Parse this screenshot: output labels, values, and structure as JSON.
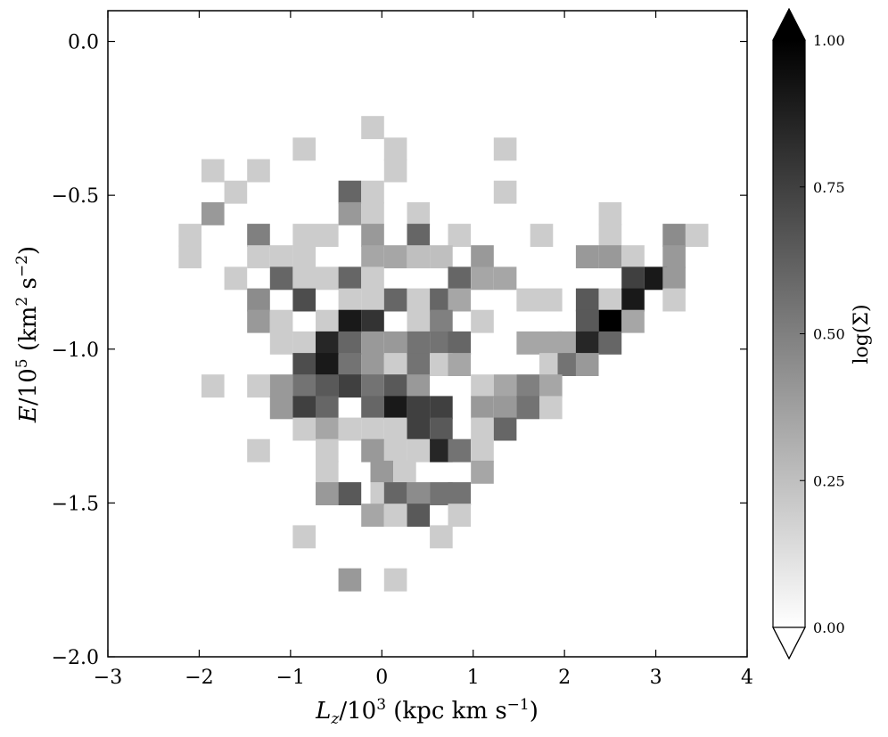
{
  "chart_data": {
    "type": "heatmap",
    "xlabel": "L_z/10^3 (kpc km s^-1)",
    "ylabel": "E/10^5 (km^2 s^-2)",
    "xlim": [
      -3,
      4
    ],
    "ylim": [
      -2.0,
      0.1
    ],
    "x_ticks": [
      "−3",
      "−2",
      "−1",
      "0",
      "1",
      "2",
      "3",
      "4"
    ],
    "y_ticks": [
      "0.0",
      "−0.5",
      "−1.0",
      "−1.5",
      "−2.0"
    ],
    "colorbar": {
      "label": "log(Σ)",
      "range": [
        0.0,
        1.0
      ],
      "ticks": [
        "0.00",
        "0.25",
        "0.50",
        "0.75",
        "1.00"
      ],
      "extend": "both",
      "colormap": "gray_r"
    },
    "bin_size": {
      "x": 0.25,
      "y": 0.075
    },
    "bins": [
      {
        "x": -0.1,
        "y": -0.28,
        "v": 0.2
      },
      {
        "x": 0.15,
        "y": -0.35,
        "v": 0.2
      },
      {
        "x": -0.85,
        "y": -0.35,
        "v": 0.2
      },
      {
        "x": 1.35,
        "y": -0.35,
        "v": 0.2
      },
      {
        "x": 0.15,
        "y": -0.42,
        "v": 0.2
      },
      {
        "x": -1.85,
        "y": -0.42,
        "v": 0.2
      },
      {
        "x": -1.35,
        "y": -0.42,
        "v": 0.2
      },
      {
        "x": -1.6,
        "y": -0.49,
        "v": 0.2
      },
      {
        "x": -0.35,
        "y": -0.49,
        "v": 0.6
      },
      {
        "x": -0.1,
        "y": -0.49,
        "v": 0.2
      },
      {
        "x": 1.35,
        "y": -0.49,
        "v": 0.2
      },
      {
        "x": -1.85,
        "y": -0.56,
        "v": 0.4
      },
      {
        "x": -0.35,
        "y": -0.56,
        "v": 0.4
      },
      {
        "x": -0.1,
        "y": -0.56,
        "v": 0.2
      },
      {
        "x": 0.4,
        "y": -0.56,
        "v": 0.2
      },
      {
        "x": 2.5,
        "y": -0.56,
        "v": 0.2
      },
      {
        "x": -2.1,
        "y": -0.63,
        "v": 0.2
      },
      {
        "x": -1.35,
        "y": -0.63,
        "v": 0.5
      },
      {
        "x": -0.85,
        "y": -0.63,
        "v": 0.2
      },
      {
        "x": -0.6,
        "y": -0.63,
        "v": 0.2
      },
      {
        "x": -0.1,
        "y": -0.63,
        "v": 0.4
      },
      {
        "x": 0.4,
        "y": -0.63,
        "v": 0.6
      },
      {
        "x": 0.85,
        "y": -0.63,
        "v": 0.2
      },
      {
        "x": 1.75,
        "y": -0.63,
        "v": 0.2
      },
      {
        "x": 2.5,
        "y": -0.63,
        "v": 0.2
      },
      {
        "x": 3.2,
        "y": -0.63,
        "v": 0.45
      },
      {
        "x": 3.45,
        "y": -0.63,
        "v": 0.2
      },
      {
        "x": -2.1,
        "y": -0.7,
        "v": 0.2
      },
      {
        "x": -1.35,
        "y": -0.7,
        "v": 0.2
      },
      {
        "x": -1.1,
        "y": -0.7,
        "v": 0.2
      },
      {
        "x": -0.85,
        "y": -0.7,
        "v": 0.2
      },
      {
        "x": -0.1,
        "y": -0.7,
        "v": 0.35
      },
      {
        "x": 0.15,
        "y": -0.7,
        "v": 0.35
      },
      {
        "x": 0.4,
        "y": -0.7,
        "v": 0.25
      },
      {
        "x": 0.65,
        "y": -0.7,
        "v": 0.25
      },
      {
        "x": 1.1,
        "y": -0.7,
        "v": 0.4
      },
      {
        "x": 2.25,
        "y": -0.7,
        "v": 0.4
      },
      {
        "x": 2.5,
        "y": -0.7,
        "v": 0.4
      },
      {
        "x": 2.75,
        "y": -0.7,
        "v": 0.2
      },
      {
        "x": 3.2,
        "y": -0.7,
        "v": 0.4
      },
      {
        "x": -1.6,
        "y": -0.77,
        "v": 0.2
      },
      {
        "x": -1.1,
        "y": -0.77,
        "v": 0.6
      },
      {
        "x": -0.85,
        "y": -0.77,
        "v": 0.2
      },
      {
        "x": -0.6,
        "y": -0.77,
        "v": 0.2
      },
      {
        "x": -0.35,
        "y": -0.77,
        "v": 0.6
      },
      {
        "x": -0.1,
        "y": -0.77,
        "v": 0.2
      },
      {
        "x": 0.85,
        "y": -0.77,
        "v": 0.6
      },
      {
        "x": 1.1,
        "y": -0.77,
        "v": 0.35
      },
      {
        "x": 1.35,
        "y": -0.77,
        "v": 0.35
      },
      {
        "x": 2.75,
        "y": -0.77,
        "v": 0.75
      },
      {
        "x": 3.0,
        "y": -0.77,
        "v": 0.9
      },
      {
        "x": 3.2,
        "y": -0.77,
        "v": 0.4
      },
      {
        "x": -1.35,
        "y": -0.84,
        "v": 0.45
      },
      {
        "x": -0.85,
        "y": -0.84,
        "v": 0.7
      },
      {
        "x": -0.35,
        "y": -0.84,
        "v": 0.2
      },
      {
        "x": -0.1,
        "y": -0.84,
        "v": 0.2
      },
      {
        "x": 0.15,
        "y": -0.84,
        "v": 0.6
      },
      {
        "x": 0.4,
        "y": -0.84,
        "v": 0.2
      },
      {
        "x": 0.65,
        "y": -0.84,
        "v": 0.6
      },
      {
        "x": 0.85,
        "y": -0.84,
        "v": 0.35
      },
      {
        "x": 1.6,
        "y": -0.84,
        "v": 0.2
      },
      {
        "x": 1.85,
        "y": -0.84,
        "v": 0.2
      },
      {
        "x": 2.25,
        "y": -0.84,
        "v": 0.65
      },
      {
        "x": 2.5,
        "y": -0.84,
        "v": 0.2
      },
      {
        "x": 2.75,
        "y": -0.84,
        "v": 0.9
      },
      {
        "x": 3.2,
        "y": -0.84,
        "v": 0.2
      },
      {
        "x": -1.35,
        "y": -0.91,
        "v": 0.4
      },
      {
        "x": -1.1,
        "y": -0.91,
        "v": 0.2
      },
      {
        "x": -0.6,
        "y": -0.91,
        "v": 0.2
      },
      {
        "x": -0.35,
        "y": -0.91,
        "v": 0.9
      },
      {
        "x": -0.1,
        "y": -0.91,
        "v": 0.8
      },
      {
        "x": 0.4,
        "y": -0.91,
        "v": 0.2
      },
      {
        "x": 0.65,
        "y": -0.91,
        "v": 0.5
      },
      {
        "x": 1.1,
        "y": -0.91,
        "v": 0.2
      },
      {
        "x": 2.25,
        "y": -0.91,
        "v": 0.65
      },
      {
        "x": 2.5,
        "y": -0.91,
        "v": 1.0
      },
      {
        "x": 2.75,
        "y": -0.91,
        "v": 0.35
      },
      {
        "x": -1.1,
        "y": -0.98,
        "v": 0.2
      },
      {
        "x": -0.85,
        "y": -0.98,
        "v": 0.2
      },
      {
        "x": -0.6,
        "y": -0.98,
        "v": 0.85
      },
      {
        "x": -0.35,
        "y": -0.98,
        "v": 0.6
      },
      {
        "x": -0.1,
        "y": -0.98,
        "v": 0.4
      },
      {
        "x": 0.15,
        "y": -0.98,
        "v": 0.4
      },
      {
        "x": 0.4,
        "y": -0.98,
        "v": 0.55
      },
      {
        "x": 0.65,
        "y": -0.98,
        "v": 0.55
      },
      {
        "x": 0.85,
        "y": -0.98,
        "v": 0.6
      },
      {
        "x": 1.6,
        "y": -0.98,
        "v": 0.35
      },
      {
        "x": 1.85,
        "y": -0.98,
        "v": 0.35
      },
      {
        "x": 2.05,
        "y": -0.98,
        "v": 0.35
      },
      {
        "x": 2.25,
        "y": -0.98,
        "v": 0.85
      },
      {
        "x": 2.5,
        "y": -0.98,
        "v": 0.6
      },
      {
        "x": -0.85,
        "y": -1.05,
        "v": 0.7
      },
      {
        "x": -0.6,
        "y": -1.05,
        "v": 0.9
      },
      {
        "x": -0.35,
        "y": -1.05,
        "v": 0.55
      },
      {
        "x": -0.1,
        "y": -1.05,
        "v": 0.4
      },
      {
        "x": 0.15,
        "y": -1.05,
        "v": 0.2
      },
      {
        "x": 0.4,
        "y": -1.05,
        "v": 0.55
      },
      {
        "x": 0.65,
        "y": -1.05,
        "v": 0.2
      },
      {
        "x": 0.85,
        "y": -1.05,
        "v": 0.35
      },
      {
        "x": 1.85,
        "y": -1.05,
        "v": 0.2
      },
      {
        "x": 2.05,
        "y": -1.05,
        "v": 0.55
      },
      {
        "x": 2.25,
        "y": -1.05,
        "v": 0.4
      },
      {
        "x": -1.85,
        "y": -1.12,
        "v": 0.2
      },
      {
        "x": -1.35,
        "y": -1.12,
        "v": 0.2
      },
      {
        "x": -1.1,
        "y": -1.12,
        "v": 0.4
      },
      {
        "x": -0.85,
        "y": -1.12,
        "v": 0.55
      },
      {
        "x": -0.6,
        "y": -1.12,
        "v": 0.65
      },
      {
        "x": -0.35,
        "y": -1.12,
        "v": 0.75
      },
      {
        "x": -0.1,
        "y": -1.12,
        "v": 0.55
      },
      {
        "x": 0.15,
        "y": -1.12,
        "v": 0.65
      },
      {
        "x": 0.4,
        "y": -1.12,
        "v": 0.4
      },
      {
        "x": 1.1,
        "y": -1.12,
        "v": 0.2
      },
      {
        "x": 1.35,
        "y": -1.12,
        "v": 0.35
      },
      {
        "x": 1.6,
        "y": -1.12,
        "v": 0.5
      },
      {
        "x": 1.85,
        "y": -1.12,
        "v": 0.35
      },
      {
        "x": -1.1,
        "y": -1.19,
        "v": 0.4
      },
      {
        "x": -0.85,
        "y": -1.19,
        "v": 0.75
      },
      {
        "x": -0.6,
        "y": -1.19,
        "v": 0.6
      },
      {
        "x": -0.1,
        "y": -1.19,
        "v": 0.6
      },
      {
        "x": 0.15,
        "y": -1.19,
        "v": 0.9
      },
      {
        "x": 0.4,
        "y": -1.19,
        "v": 0.75
      },
      {
        "x": 0.65,
        "y": -1.19,
        "v": 0.75
      },
      {
        "x": 1.1,
        "y": -1.19,
        "v": 0.4
      },
      {
        "x": 1.35,
        "y": -1.19,
        "v": 0.4
      },
      {
        "x": 1.6,
        "y": -1.19,
        "v": 0.55
      },
      {
        "x": 1.85,
        "y": -1.19,
        "v": 0.2
      },
      {
        "x": -0.85,
        "y": -1.26,
        "v": 0.2
      },
      {
        "x": -0.6,
        "y": -1.26,
        "v": 0.35
      },
      {
        "x": -0.35,
        "y": -1.26,
        "v": 0.2
      },
      {
        "x": -0.1,
        "y": -1.26,
        "v": 0.2
      },
      {
        "x": 0.15,
        "y": -1.26,
        "v": 0.2
      },
      {
        "x": 0.4,
        "y": -1.26,
        "v": 0.75
      },
      {
        "x": 0.65,
        "y": -1.26,
        "v": 0.65
      },
      {
        "x": 1.1,
        "y": -1.26,
        "v": 0.2
      },
      {
        "x": 1.35,
        "y": -1.26,
        "v": 0.6
      },
      {
        "x": -1.35,
        "y": -1.33,
        "v": 0.2
      },
      {
        "x": -0.6,
        "y": -1.33,
        "v": 0.2
      },
      {
        "x": 0.15,
        "y": -1.33,
        "v": 0.2
      },
      {
        "x": -0.1,
        "y": -1.33,
        "v": 0.4
      },
      {
        "x": 0.4,
        "y": -1.33,
        "v": 0.2
      },
      {
        "x": 0.65,
        "y": -1.33,
        "v": 0.85
      },
      {
        "x": 0.85,
        "y": -1.33,
        "v": 0.55
      },
      {
        "x": 1.1,
        "y": -1.33,
        "v": 0.2
      },
      {
        "x": -0.6,
        "y": -1.4,
        "v": 0.2
      },
      {
        "x": 0.0,
        "y": -1.4,
        "v": 0.4
      },
      {
        "x": 0.25,
        "y": -1.4,
        "v": 0.2
      },
      {
        "x": 1.1,
        "y": -1.4,
        "v": 0.35
      },
      {
        "x": -0.6,
        "y": -1.47,
        "v": 0.4
      },
      {
        "x": -0.35,
        "y": -1.47,
        "v": 0.65
      },
      {
        "x": 0.0,
        "y": -1.47,
        "v": 0.2
      },
      {
        "x": 0.15,
        "y": -1.47,
        "v": 0.6
      },
      {
        "x": 0.4,
        "y": -1.47,
        "v": 0.45
      },
      {
        "x": 0.65,
        "y": -1.47,
        "v": 0.55
      },
      {
        "x": 0.85,
        "y": -1.47,
        "v": 0.55
      },
      {
        "x": -0.1,
        "y": -1.54,
        "v": 0.35
      },
      {
        "x": 0.15,
        "y": -1.54,
        "v": 0.2
      },
      {
        "x": 0.4,
        "y": -1.54,
        "v": 0.65
      },
      {
        "x": 0.85,
        "y": -1.54,
        "v": 0.2
      },
      {
        "x": -0.85,
        "y": -1.61,
        "v": 0.2
      },
      {
        "x": 0.65,
        "y": -1.61,
        "v": 0.2
      },
      {
        "x": -0.35,
        "y": -1.75,
        "v": 0.4
      },
      {
        "x": 0.15,
        "y": -1.75,
        "v": 0.2
      }
    ]
  }
}
